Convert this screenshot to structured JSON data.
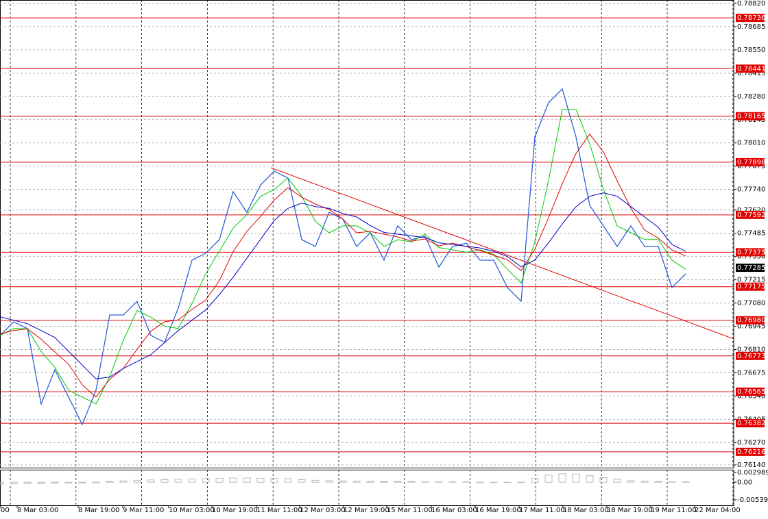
{
  "chart_data": [
    {
      "type": "line",
      "x": [
        0,
        1,
        2,
        3,
        4,
        5,
        6,
        7,
        8,
        9,
        10,
        11,
        12,
        13,
        14,
        15,
        16,
        17,
        18,
        19,
        20,
        21,
        22,
        23,
        24,
        25,
        26,
        27,
        28,
        29,
        30,
        31,
        32,
        33,
        34,
        35,
        36,
        37,
        38,
        39,
        40,
        41,
        42,
        43,
        44,
        45,
        46,
        47,
        48,
        49,
        50
      ],
      "xlim": [
        0,
        53.5
      ],
      "xticks": [
        {
          "value": 0,
          "label": "00"
        },
        {
          "value": 1.2,
          "label": "8 Mar 03:00"
        },
        {
          "value": 5.65,
          "label": "8 Mar 19:00"
        },
        {
          "value": 8.9,
          "label": "9 Mar 11:00"
        },
        {
          "value": 12.25,
          "label": "10 Mar 03:00"
        },
        {
          "value": 15.4,
          "label": "10 Mar 19:00"
        },
        {
          "value": 18.65,
          "label": "11 Mar 11:00"
        },
        {
          "value": 21.8,
          "label": "12 Mar 03:00"
        },
        {
          "value": 25,
          "label": "12 Mar 19:00"
        },
        {
          "value": 28.15,
          "label": "15 Mar 11:00"
        },
        {
          "value": 31.4,
          "label": "16 Mar 03:00"
        },
        {
          "value": 34.6,
          "label": "16 Mar 19:00"
        },
        {
          "value": 37.8,
          "label": "17 Mar 11:00"
        },
        {
          "value": 41,
          "label": "18 Mar 03:00"
        },
        {
          "value": 44.2,
          "label": "18 Mar 19:00"
        },
        {
          "value": 47.4,
          "label": "19 Mar 11:00"
        },
        {
          "value": 50.6,
          "label": "22 Mar 04:00"
        }
      ],
      "ylim": [
        0.7614,
        0.7882
      ],
      "yticks": [
        {
          "value": 0.7882,
          "label": "0.78820"
        },
        0.78685,
        {
          "value": 0.7855,
          "label": "0.78550"
        },
        0.78415,
        {
          "value": 0.7828,
          "label": "0.78280"
        },
        0.78145,
        {
          "value": 0.7801,
          "label": "0.78010"
        },
        0.77875,
        {
          "value": 0.7774,
          "label": "0.77740"
        },
        {
          "value": 0.7762,
          "label": "0.77620"
        },
        0.77485,
        {
          "value": 0.7735,
          "label": "0.77350"
        },
        0.77215,
        {
          "value": 0.7708,
          "label": "0.77080"
        },
        0.76945,
        {
          "value": 0.7681,
          "label": "0.76810"
        },
        0.76675,
        {
          "value": 0.7654,
          "label": "0.76540"
        },
        0.76405,
        {
          "value": 0.7627,
          "label": "0.76270"
        },
        {
          "value": 0.7614,
          "label": "0.76140"
        }
      ],
      "grid": true,
      "series": [
        {
          "color": "#2b5fd9",
          "values": [
            0.76892,
            0.76971,
            0.76931,
            0.76494,
            0.76693,
            0.76534,
            0.76375,
            0.76574,
            0.77011,
            0.77011,
            0.7709,
            0.76892,
            0.76852,
            0.77051,
            0.77329,
            0.77369,
            0.77448,
            0.77727,
            0.77607,
            0.77766,
            0.77846,
            0.77806,
            0.77448,
            0.77409,
            0.77607,
            0.77568,
            0.77409,
            0.77488,
            0.77329,
            0.77528,
            0.77448,
            0.77468,
            0.77289,
            0.77409,
            0.77428,
            0.77329,
            0.77329,
            0.7717,
            0.7709,
            0.78045,
            0.78244,
            0.78323,
            0.78045,
            0.77647,
            0.77528,
            0.77409,
            0.77528,
            0.77409,
            0.77409,
            0.7717,
            0.7725
          ]
        },
        {
          "color": "#00c800",
          "values": [
            0.76892,
            0.76932,
            0.76931,
            0.76799,
            0.76706,
            0.76574,
            0.76534,
            0.76494,
            0.76653,
            0.76865,
            0.77037,
            0.76998,
            0.76945,
            0.76932,
            0.77077,
            0.7725,
            0.77382,
            0.77515,
            0.77594,
            0.777,
            0.7774,
            0.77806,
            0.777,
            0.77554,
            0.77488,
            0.77528,
            0.77528,
            0.77488,
            0.77409,
            0.77448,
            0.77435,
            0.77481,
            0.77402,
            0.77389,
            0.77375,
            0.77389,
            0.77362,
            0.77276,
            0.77196,
            0.77435,
            0.77793,
            0.78204,
            0.78204,
            0.78005,
            0.7774,
            0.77528,
            0.77488,
            0.77449,
            0.77449,
            0.77329,
            0.77276
          ]
        },
        {
          "color": "#e00000",
          "values": [
            0.769,
            0.7692,
            0.7693,
            0.7687,
            0.76796,
            0.76725,
            0.76605,
            0.76534,
            0.76637,
            0.76701,
            0.76812,
            0.76916,
            0.76971,
            0.76982,
            0.77043,
            0.77098,
            0.7721,
            0.77379,
            0.77496,
            0.77583,
            0.77679,
            0.7775,
            0.77695,
            0.77655,
            0.77623,
            0.77568,
            0.77488,
            0.77496,
            0.7748,
            0.77464,
            0.7744,
            0.77452,
            0.77412,
            0.77428,
            0.77408,
            0.77385,
            0.77357,
            0.77331,
            0.77268,
            0.77393,
            0.77576,
            0.77774,
            0.77949,
            0.78061,
            0.77957,
            0.7779,
            0.77631,
            0.77504,
            0.77457,
            0.77389,
            0.77353
          ]
        },
        {
          "color": "#0000c8",
          "values": [
            0.77,
            0.7698,
            0.7696,
            0.7692,
            0.7688,
            0.768,
            0.7672,
            0.7664,
            0.7665,
            0.767,
            0.7674,
            0.7678,
            0.7685,
            0.7692,
            0.7698,
            0.7704,
            0.7713,
            0.7723,
            0.7734,
            0.7745,
            0.7756,
            0.7763,
            0.7766,
            0.7764,
            0.7763,
            0.776,
            0.7758,
            0.7753,
            0.7749,
            0.7748,
            0.7747,
            0.7746,
            0.7743,
            0.7742,
            0.7741,
            0.774,
            0.7738,
            0.7735,
            0.7729,
            0.7733,
            0.7743,
            0.7754,
            0.7764,
            0.777,
            0.7772,
            0.777,
            0.7764,
            0.7758,
            0.7752,
            0.7742,
            0.7738
          ]
        }
      ],
      "levels": [
        {
          "value": 0.78736,
          "label": "0.78736"
        },
        {
          "value": 0.78441,
          "label": "0.78441"
        },
        {
          "value": 0.78165,
          "label": "0.78165"
        },
        {
          "value": 0.77898,
          "label": "0.77898"
        },
        {
          "value": 0.77592,
          "label": "0.77592"
        },
        {
          "value": 0.77375,
          "label": "0.77375"
        },
        {
          "value": 0.77175,
          "label": "0.77175"
        },
        {
          "value": 0.7698,
          "label": "0.76980"
        },
        {
          "value": 0.76773,
          "label": "0.76773"
        },
        {
          "value": 0.76565,
          "label": "0.76565"
        },
        {
          "value": 0.76382,
          "label": "0.76382"
        },
        {
          "value": 0.76216,
          "label": "0.76216"
        }
      ],
      "level_color": "#e00000",
      "last_price": {
        "value": 0.77285,
        "label": "0.77285"
      },
      "trendline": {
        "x": [
          19.75,
          53.5
        ],
        "y": [
          0.77866,
          0.76872
        ],
        "color": "#e00000"
      }
    },
    {
      "type": "bar",
      "x": [
        0,
        1,
        2,
        3,
        4,
        5,
        6,
        7,
        8,
        9,
        10,
        11,
        12,
        13,
        14,
        15,
        16,
        17,
        18,
        19,
        20,
        21,
        22,
        23,
        24,
        25,
        26,
        27,
        28,
        29,
        30,
        31,
        32,
        33,
        34,
        35,
        36,
        37,
        38,
        39,
        40,
        41,
        42,
        43,
        44,
        45,
        46,
        47,
        48,
        49,
        50
      ],
      "xlim": [
        0,
        53.5
      ],
      "values": [
        -0.0006,
        -0.0005,
        -0.0004,
        -0.0004,
        -0.0003,
        -0.0003,
        -0.0002,
        -0.0002,
        0.0002,
        0.0004,
        0.0006,
        0.0007,
        0.0008,
        0.0009,
        0.001,
        0.0011,
        0.0012,
        0.0013,
        0.0013,
        0.0012,
        0.0012,
        0.0011,
        0.0008,
        0.0006,
        0.0005,
        0.0004,
        0.0003,
        0.0003,
        0.0002,
        0.0002,
        0.0002,
        0.0001,
        0.0001,
        0.0001,
        0.0001,
        0,
        0,
        -0.0001,
        -0.0001,
        0.0012,
        0.0022,
        0.0026,
        0.0025,
        0.002,
        0.0014,
        0.0009,
        0.0005,
        0.0003,
        0.0002,
        0.0001,
        0.0001
      ],
      "color": "#b8b8b8",
      "ylim": [
        -0.005392,
        0.002989
      ],
      "yticks": [
        0.002989,
        {
          "value": 0,
          "label": "0.00"
        },
        -0.005392
      ]
    }
  ]
}
